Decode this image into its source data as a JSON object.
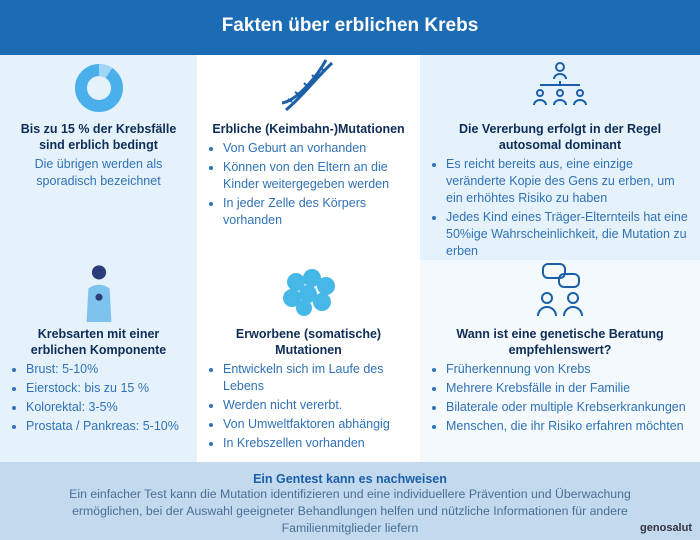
{
  "header": {
    "title": "Fakten über erblichen Krebs"
  },
  "cards": [
    {
      "title": "Bis zu 15 % der Krebsfälle sind erblich bedingt",
      "text": "Die übrigen werden als sporadisch bezeichnet"
    },
    {
      "title": "Erbliche (Keimbahn-)Mutationen",
      "bullets": [
        "Von Geburt an vorhanden",
        "Können von den Eltern an die Kinder weitergegeben werden",
        "In jeder Zelle des Körpers vorhanden"
      ]
    },
    {
      "title": "Die Vererbung erfolgt in der Regel autosomal dominant",
      "bullets": [
        "Es reicht bereits aus, eine einzige veränderte Kopie des Gens zu erben, um ein erhöhtes Risiko zu haben",
        "Jedes Kind eines Träger-Elternteils hat eine 50%ige Wahrscheinlichkeit, die Mutation zu erben"
      ]
    },
    {
      "title": "Krebsarten mit einer erblichen Komponente",
      "bullets": [
        "Brust: 5-10%",
        "Eierstock: bis zu 15 %",
        "Kolorektal: 3-5%",
        "Prostata / Pankreas: 5-10%"
      ]
    },
    {
      "title": "Erworbene (somatische) Mutationen",
      "bullets": [
        "Entwickeln sich im Laufe des Lebens",
        "Werden nicht vererbt.",
        "Von Umweltfaktoren abhängig",
        "In Krebszellen vorhanden"
      ]
    },
    {
      "title": "Wann ist eine genetische Beratung empfehlenswert?",
      "bullets": [
        "Früherkennung von Krebs",
        "Mehrere Krebsfälle in der Familie",
        "Bilaterale oder multiple Krebserkrankungen",
        "Menschen, die ihr Risiko erfahren möchten"
      ]
    }
  ],
  "footer": {
    "title": "Ein Gentest kann es nachweisen",
    "text": "Ein einfacher Test kann die Mutation identifizieren und eine individuellere Prävention und Überwachung ermöglichen, bei der Auswahl geeigneter Behandlungen helfen und nützliche Informationen für andere Familienmitglieder liefern"
  },
  "logo": "genosalut"
}
